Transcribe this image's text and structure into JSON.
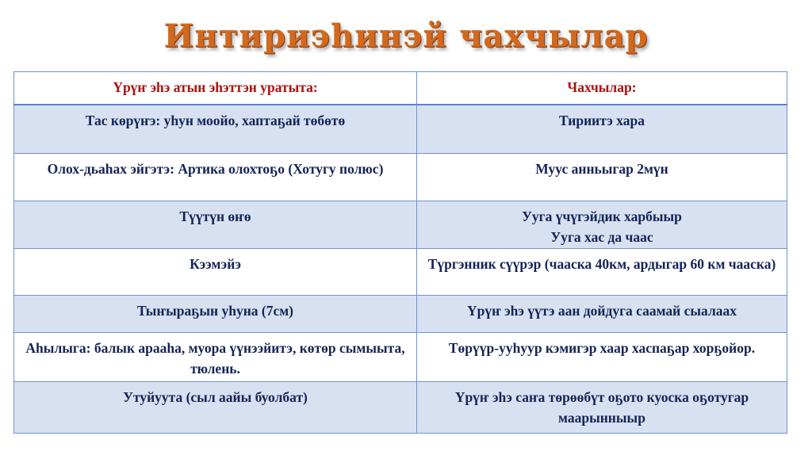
{
  "slide": {
    "title": "Интириэhинэй чахчылар",
    "title_color": "#d2691e"
  },
  "table": {
    "headers": [
      "Үрүҥ эһэ  атын эһэттэн уратыта:",
      "Чахчылар:"
    ],
    "header_color": "#b00e0e",
    "row_colors": {
      "shaded": "#d7e1f1",
      "plain": "#ffffff",
      "border": "#6f93d0"
    },
    "rows": [
      [
        "Тас көрүҥэ: уһун моойо, хаптаҕай төбөтө",
        "Тириитэ хара"
      ],
      [
        "Олох-дьаһах эйгэтэ: Артика олохтоҕо (Хотугу полюс)",
        "Муус анньыгар 2мүн"
      ],
      [
        "Түүтүн өҥө",
        "Ууга үчүгэйдик харбыыр\nУуга хас да чаас"
      ],
      [
        "Кээмэйэ",
        "Түргэнник сүүрэр (чааска 40км, ардыгар 60 км чааска)"
      ],
      [
        "Тыҥыраҕын уһуна (7см)",
        "Үрүҥ эһэ үүтэ аан дойдуга саамай сыалаах"
      ],
      [
        "Аһылыга:  балык арааһа, муора үүнээйитэ, көтөр сымыыта, тюлень.",
        "Төрүүр-ууһуур кэмигэр хаар хаспаҕар хорҕойор."
      ],
      [
        "Утуйуута (сыл аайы буолбат)",
        "Үрүҥ эһэ саҥа төрөөбүт оҕото куоска оҕотугар маарынныыр"
      ]
    ]
  }
}
